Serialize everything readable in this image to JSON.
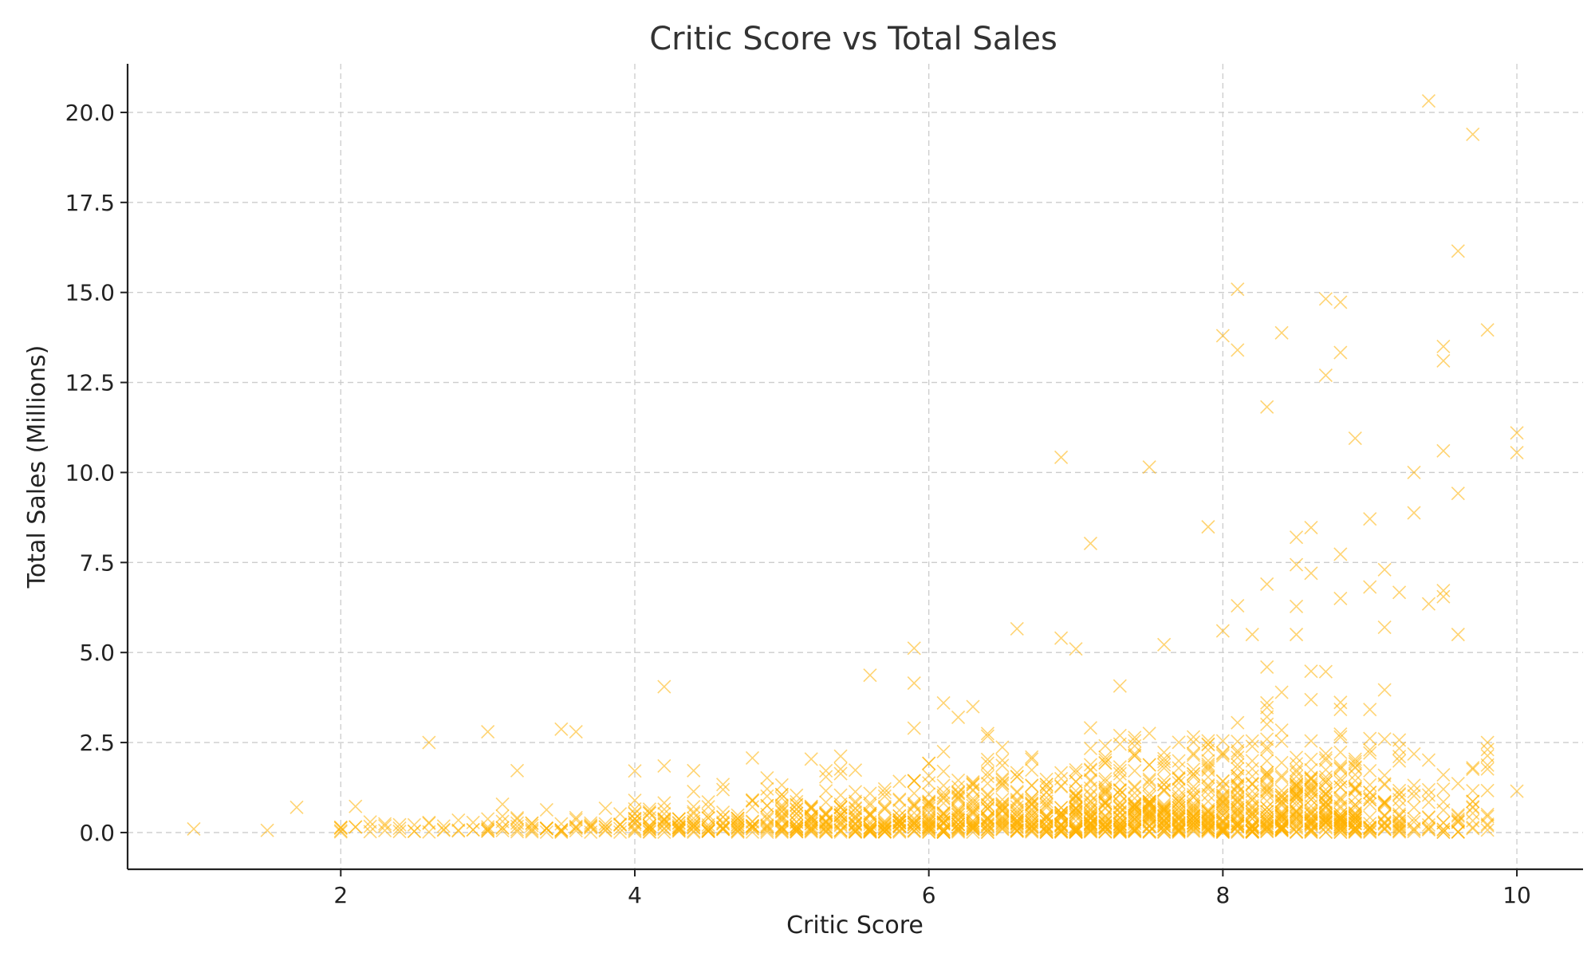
{
  "chart_data": {
    "type": "scatter",
    "title": "Critic Score vs Total Sales",
    "xlabel": "Critic Score",
    "ylabel": "Total Sales (Millions)",
    "xlim": [
      0.55,
      10.45
    ],
    "ylim": [
      -1.02,
      21.35
    ],
    "xticks": [
      "2",
      "4",
      "6",
      "8",
      "10"
    ],
    "yticks": [
      "0.0",
      "2.5",
      "5.0",
      "7.5",
      "10.0",
      "12.5",
      "15.0",
      "17.5",
      "20.0"
    ],
    "grid": true,
    "marker": "x",
    "color": "#FFB000",
    "notable_points": [
      {
        "x": 9.4,
        "y": 20.32
      },
      {
        "x": 9.7,
        "y": 19.39
      },
      {
        "x": 9.6,
        "y": 16.15
      },
      {
        "x": 8.1,
        "y": 15.09
      },
      {
        "x": 8.7,
        "y": 14.82
      },
      {
        "x": 8.8,
        "y": 14.73
      },
      {
        "x": 9.8,
        "y": 13.96
      },
      {
        "x": 8.4,
        "y": 13.88
      },
      {
        "x": 8.0,
        "y": 13.8
      },
      {
        "x": 9.5,
        "y": 13.5
      },
      {
        "x": 8.1,
        "y": 13.4
      },
      {
        "x": 8.8,
        "y": 13.33
      },
      {
        "x": 9.5,
        "y": 13.1
      },
      {
        "x": 8.7,
        "y": 12.7
      },
      {
        "x": 8.3,
        "y": 11.82
      },
      {
        "x": 10.0,
        "y": 11.1
      },
      {
        "x": 8.9,
        "y": 10.95
      },
      {
        "x": 9.5,
        "y": 10.6
      },
      {
        "x": 10.0,
        "y": 10.55
      },
      {
        "x": 6.9,
        "y": 10.42
      },
      {
        "x": 7.5,
        "y": 10.15
      },
      {
        "x": 9.3,
        "y": 10.0
      },
      {
        "x": 9.6,
        "y": 9.42
      },
      {
        "x": 9.3,
        "y": 8.88
      },
      {
        "x": 9.0,
        "y": 8.71
      },
      {
        "x": 7.9,
        "y": 8.49
      },
      {
        "x": 8.6,
        "y": 8.47
      },
      {
        "x": 8.5,
        "y": 8.2
      },
      {
        "x": 7.1,
        "y": 8.03
      },
      {
        "x": 8.8,
        "y": 7.73
      },
      {
        "x": 8.5,
        "y": 7.44
      },
      {
        "x": 9.1,
        "y": 7.3
      },
      {
        "x": 8.6,
        "y": 7.2
      },
      {
        "x": 8.3,
        "y": 6.9
      },
      {
        "x": 9.0,
        "y": 6.82
      },
      {
        "x": 9.5,
        "y": 6.72
      },
      {
        "x": 9.2,
        "y": 6.67
      },
      {
        "x": 9.5,
        "y": 6.55
      },
      {
        "x": 8.8,
        "y": 6.5
      },
      {
        "x": 9.4,
        "y": 6.35
      },
      {
        "x": 8.1,
        "y": 6.3
      },
      {
        "x": 8.5,
        "y": 6.28
      },
      {
        "x": 6.6,
        "y": 5.66
      },
      {
        "x": 8.0,
        "y": 5.6
      },
      {
        "x": 9.6,
        "y": 5.5
      },
      {
        "x": 7.0,
        "y": 5.1
      },
      {
        "x": 5.9,
        "y": 5.12
      },
      {
        "x": 6.9,
        "y": 5.4
      },
      {
        "x": 7.6,
        "y": 5.22
      },
      {
        "x": 9.1,
        "y": 5.7
      },
      {
        "x": 8.2,
        "y": 5.5
      },
      {
        "x": 5.6,
        "y": 4.37
      },
      {
        "x": 5.9,
        "y": 4.15
      },
      {
        "x": 4.2,
        "y": 4.05
      },
      {
        "x": 6.1,
        "y": 3.6
      },
      {
        "x": 6.2,
        "y": 3.2
      },
      {
        "x": 5.9,
        "y": 2.9
      },
      {
        "x": 3.5,
        "y": 2.87
      },
      {
        "x": 3.0,
        "y": 2.8
      },
      {
        "x": 3.6,
        "y": 2.8
      },
      {
        "x": 2.6,
        "y": 2.5
      },
      {
        "x": 9.8,
        "y": 2.5
      },
      {
        "x": 4.8,
        "y": 2.07
      },
      {
        "x": 3.2,
        "y": 1.72
      },
      {
        "x": 4.4,
        "y": 1.72
      },
      {
        "x": 1.7,
        "y": 0.7
      },
      {
        "x": 10.0,
        "y": 1.15
      },
      {
        "x": 9.7,
        "y": 1.8
      },
      {
        "x": 1.0,
        "y": 0.1
      },
      {
        "x": 1.5,
        "y": 0.06
      },
      {
        "x": 2.0,
        "y": 0.12
      },
      {
        "x": 2.0,
        "y": 0.02
      }
    ],
    "bulk_distribution": {
      "x_range": [
        2.0,
        9.8
      ],
      "x_step": 0.1,
      "description_of_density": "dense cloud of points between 0 and ~2 million for scores 5-9, sparse below score 4"
    }
  }
}
